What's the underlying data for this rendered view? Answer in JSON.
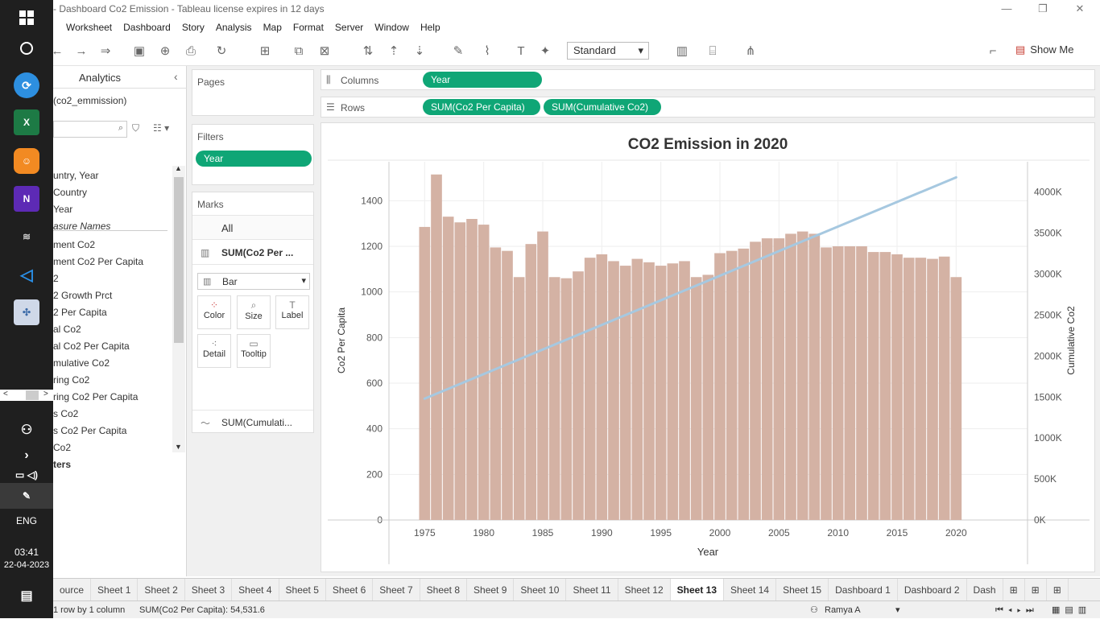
{
  "window": {
    "title": "- Dashboard  Co2 Emission - Tableau license expires in 12 days"
  },
  "menu": [
    "Worksheet",
    "Dashboard",
    "Story",
    "Analysis",
    "Map",
    "Format",
    "Server",
    "Window",
    "Help"
  ],
  "toolbar": {
    "fit_select": "Standard",
    "show_me": "Show Me"
  },
  "datapane": {
    "tab_analytics": "Analytics",
    "source": "(co2_emmission)",
    "fields": [
      "untry, Year",
      "Country",
      "Year",
      "asure Names",
      "ment Co2",
      "ment Co2 Per Capita",
      "2",
      "2 Growth Prct",
      "2 Per Capita",
      "al Co2",
      "al Co2 Per Capita",
      "mulative Co2",
      "ring Co2",
      "ring Co2 Per Capita",
      "s Co2",
      "s Co2 Per Capita",
      "Co2"
    ],
    "params_label": "ters"
  },
  "pages": {
    "title": "Pages"
  },
  "filters": {
    "title": "Filters",
    "pill": "Year"
  },
  "marks": {
    "title": "Marks",
    "all": "All",
    "measure1": "SUM(Co2 Per ...",
    "mark_type": "Bar",
    "color": "Color",
    "size": "Size",
    "label": "Label",
    "detail": "Detail",
    "tooltip": "Tooltip",
    "measure2": "SUM(Cumulati..."
  },
  "columns": {
    "label": "Columns",
    "pill": "Year"
  },
  "rows": {
    "label": "Rows",
    "pill1": "SUM(Co2 Per Capita)",
    "pill2": "SUM(Cumulative Co2)"
  },
  "sheets": [
    "ource",
    "Sheet 1",
    "Sheet 2",
    "Sheet 3",
    "Sheet 4",
    "Sheet 5",
    "Sheet 6",
    "Sheet 7",
    "Sheet 8",
    "Sheet 9",
    "Sheet 10",
    "Sheet 11",
    "Sheet 12",
    "Sheet 13",
    "Sheet 14",
    "Sheet 15",
    "Dashboard 1",
    "Dashboard 2",
    "Dash"
  ],
  "active_sheet": "Sheet 13",
  "status": {
    "rows": "1 row by 1 column",
    "sum": "SUM(Co2 Per Capita): 54,531.6",
    "user": "Ramya A"
  },
  "taskbar": {
    "lang": "ENG",
    "time": "03:41",
    "date": "22-04-2023"
  },
  "colors": {
    "accent_pill": "#0fa676",
    "bar": "#d4b2a4",
    "line": "#a6c8e0"
  },
  "chart_data": {
    "type": "bar",
    "title": "CO2 Emission in 2020",
    "xlabel": "Year",
    "ylabel": "Co2 Per Capita",
    "y2label": "Cumulative Co2",
    "x": [
      1975,
      1976,
      1977,
      1978,
      1979,
      1980,
      1981,
      1982,
      1983,
      1984,
      1985,
      1986,
      1987,
      1988,
      1989,
      1990,
      1991,
      1992,
      1993,
      1994,
      1995,
      1996,
      1997,
      1998,
      1999,
      2000,
      2001,
      2002,
      2003,
      2004,
      2005,
      2006,
      2007,
      2008,
      2009,
      2010,
      2011,
      2012,
      2013,
      2014,
      2015,
      2016,
      2017,
      2018,
      2019,
      2020
    ],
    "series": [
      {
        "name": "SUM(Co2 Per Capita)",
        "type": "bar",
        "axis": "left",
        "values": [
          1285,
          1515,
          1330,
          1305,
          1320,
          1295,
          1195,
          1180,
          1065,
          1210,
          1265,
          1065,
          1060,
          1090,
          1150,
          1165,
          1135,
          1115,
          1145,
          1130,
          1115,
          1125,
          1135,
          1065,
          1075,
          1170,
          1180,
          1190,
          1220,
          1235,
          1235,
          1255,
          1265,
          1255,
          1195,
          1200,
          1200,
          1200,
          1175,
          1175,
          1165,
          1150,
          1150,
          1145,
          1155,
          1065
        ]
      },
      {
        "name": "SUM(Cumulative Co2)",
        "type": "line",
        "axis": "right",
        "x": [
          1975,
          2020
        ],
        "values": [
          1480000,
          4180000
        ]
      }
    ],
    "ylim": [
      0,
      1500
    ],
    "yticks": [
      0,
      200,
      400,
      600,
      800,
      1000,
      1200,
      1400
    ],
    "y2lim": [
      0,
      4370000
    ],
    "y2ticks": [
      "0K",
      "500K",
      "1000K",
      "1500K",
      "2000K",
      "2500K",
      "3000K",
      "3500K",
      "4000K"
    ],
    "xticks": [
      1975,
      1980,
      1985,
      1990,
      1995,
      2000,
      2005,
      2010,
      2015,
      2020
    ],
    "grid": true
  }
}
